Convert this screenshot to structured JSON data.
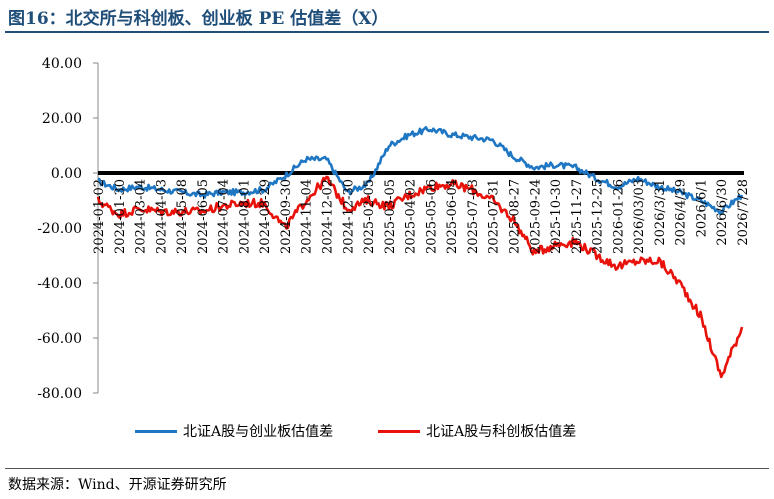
{
  "title": "图16：北交所与科创板、创业板 PE 估值差（X）",
  "source": "数据来源：Wind、开源证券研究所",
  "chart_data": {
    "type": "line",
    "y_ticks": [
      "40.00",
      "20.00",
      "0.00",
      "-20.00",
      "-40.00",
      "-60.00",
      "-80.00"
    ],
    "ylim": [
      -80,
      40
    ],
    "x_tick_labels": [
      "2024-01-02",
      "2024-01-30",
      "2024-03-04",
      "2024-04-03",
      "2024-05-08",
      "2024-06-05",
      "2024-07-04",
      "2024-08-01",
      "2024-08-29",
      "2024-09-30",
      "2024-11-04",
      "2024-12-02",
      "2024-12-30",
      "2025-02-05",
      "2025-03-05",
      "2025-04-02",
      "2025-05-06",
      "2025-06-04",
      "2025-07-03",
      "2025-07-31",
      "2025-08-27",
      "2025-09-24",
      "2025-10-30",
      "2025-11-27",
      "2025-12-25",
      "2026-01-26",
      "2026/03/03",
      "2026/3/31",
      "2026/4/29",
      "2026/6/1",
      "2026/6/30",
      "2026/7/28"
    ],
    "series": [
      {
        "name": "北证A股与创业板估值差",
        "color": "#1f77c4",
        "values": [
          -3,
          -6,
          -5,
          -6,
          -7,
          -8,
          -7,
          -7,
          -6,
          -1,
          5,
          5,
          -7,
          -4,
          10,
          14,
          16,
          14,
          13,
          12,
          6,
          2,
          3,
          2,
          -2,
          -5,
          -2,
          -5,
          -7,
          -10,
          -14,
          -8
        ]
      },
      {
        "name": "北证A股与科创板估值差",
        "color": "#e8120b",
        "values": [
          -10,
          -15,
          -13,
          -14,
          -14,
          -14,
          -12,
          -11,
          -11,
          -20,
          -10,
          -2,
          -13,
          -10,
          -12,
          -8,
          -5,
          -4,
          -6,
          -10,
          -17,
          -29,
          -26,
          -25,
          -30,
          -34,
          -32,
          -32,
          -40,
          -52,
          -74,
          -56
        ]
      }
    ],
    "legend_position": "bottom",
    "grid": false
  }
}
